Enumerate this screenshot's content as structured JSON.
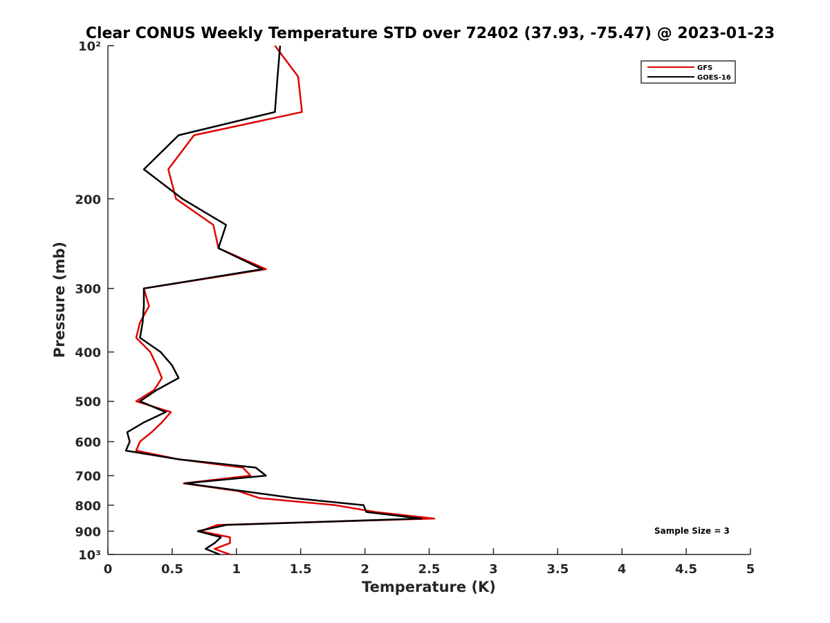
{
  "chart_data": {
    "type": "line",
    "title": "Clear CONUS Weekly Temperature STD over 72402 (37.93, -75.47) @ 2023-01-23",
    "xlabel": "Temperature (K)",
    "ylabel": "Pressure (mb)",
    "xlim": [
      0,
      5
    ],
    "ylim": [
      100,
      1000
    ],
    "y_scale": "log",
    "y_reversed": true,
    "grid": false,
    "legend_position": "top-right",
    "x_ticks": [
      0,
      0.5,
      1,
      1.5,
      2,
      2.5,
      3,
      3.5,
      4,
      4.5,
      5
    ],
    "x_tick_labels": [
      "0",
      "0.5",
      "1",
      "1.5",
      "2",
      "2.5",
      "3",
      "3.5",
      "4",
      "4.5",
      "5"
    ],
    "y_ticks": [
      100,
      200,
      300,
      400,
      500,
      600,
      700,
      800,
      900,
      1000
    ],
    "y_tick_labels": [
      "10²",
      "200",
      "300",
      "400",
      "500",
      "600",
      "700",
      "800",
      "900",
      "10³"
    ],
    "annotation": "Sample Size = 3",
    "series": [
      {
        "name": "GFS",
        "color": "#e00000",
        "pressure": [
          100,
          115,
          135,
          150,
          175,
          200,
          225,
          250,
          275,
          300,
          325,
          350,
          375,
          400,
          425,
          450,
          475,
          500,
          525,
          550,
          575,
          600,
          625,
          650,
          675,
          700,
          725,
          750,
          775,
          800,
          825,
          850,
          875,
          900,
          925,
          950,
          975,
          1000
        ],
        "values": [
          1.3,
          1.48,
          1.51,
          0.67,
          0.47,
          0.53,
          0.82,
          0.86,
          1.23,
          0.28,
          0.32,
          0.25,
          0.22,
          0.33,
          0.38,
          0.42,
          0.36,
          0.22,
          0.49,
          0.42,
          0.34,
          0.25,
          0.22,
          0.55,
          1.05,
          1.11,
          0.59,
          1.01,
          1.18,
          1.77,
          2.08,
          2.54,
          0.85,
          0.72,
          0.95,
          0.95,
          0.83,
          0.95
        ]
      },
      {
        "name": "GOES-16",
        "color": "#000000",
        "pressure": [
          100,
          115,
          135,
          150,
          175,
          200,
          225,
          250,
          275,
          300,
          325,
          350,
          375,
          400,
          425,
          450,
          475,
          500,
          525,
          550,
          575,
          600,
          625,
          650,
          675,
          700,
          725,
          750,
          775,
          800,
          825,
          850,
          875,
          900,
          925,
          950,
          975,
          1000
        ],
        "values": [
          1.34,
          1.32,
          1.3,
          0.55,
          0.28,
          0.58,
          0.92,
          0.86,
          1.2,
          0.28,
          0.28,
          0.27,
          0.25,
          0.41,
          0.5,
          0.55,
          0.38,
          0.25,
          0.45,
          0.28,
          0.15,
          0.17,
          0.14,
          0.55,
          1.15,
          1.23,
          0.6,
          1.04,
          1.45,
          1.99,
          2.01,
          2.44,
          0.92,
          0.7,
          0.88,
          0.83,
          0.76,
          0.87
        ]
      }
    ]
  }
}
